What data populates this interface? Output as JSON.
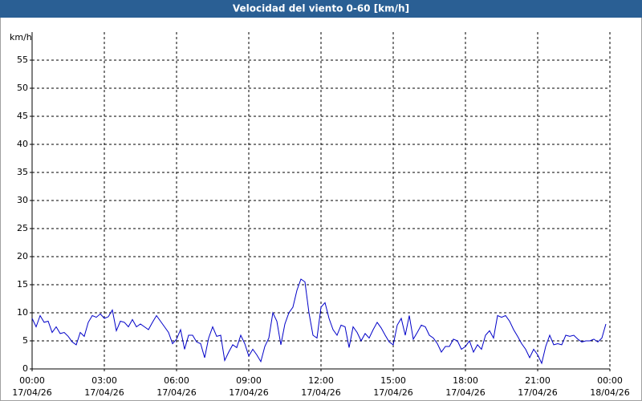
{
  "chart_data": {
    "type": "line",
    "title": "Velocidad del viento 0-60 [km/h]",
    "y_label": "km/h",
    "xlim": [
      0,
      1440
    ],
    "xticks": [
      {
        "value": 0,
        "label": "00:00"
      },
      {
        "value": 180,
        "label": "03:00"
      },
      {
        "value": 360,
        "label": "06:00"
      },
      {
        "value": 540,
        "label": "09:00"
      },
      {
        "value": 720,
        "label": "12:00"
      },
      {
        "value": 900,
        "label": "15:00"
      },
      {
        "value": 1080,
        "label": "18:00"
      },
      {
        "value": 1260,
        "label": "21:00"
      },
      {
        "value": 1440,
        "label": "00:00"
      }
    ],
    "xtick_dates": [
      "17/04/26",
      "17/04/26",
      "17/04/26",
      "17/04/26",
      "17/04/26",
      "17/04/26",
      "17/04/26",
      "17/04/26",
      "18/04/26"
    ],
    "ylim": [
      0,
      60
    ],
    "yticks": [
      0,
      5,
      10,
      15,
      20,
      25,
      30,
      35,
      40,
      45,
      50,
      55
    ],
    "grid": true,
    "series": [
      {
        "color": "#0000c8",
        "x": [
          0,
          10,
          20,
          30,
          40,
          50,
          60,
          70,
          80,
          90,
          100,
          110,
          120,
          130,
          140,
          150,
          160,
          170,
          180,
          190,
          200,
          210,
          220,
          230,
          240,
          250,
          260,
          270,
          280,
          290,
          300,
          310,
          320,
          330,
          340,
          350,
          360,
          370,
          380,
          390,
          400,
          410,
          420,
          430,
          440,
          450,
          460,
          470,
          480,
          490,
          500,
          510,
          520,
          530,
          540,
          550,
          560,
          570,
          580,
          590,
          600,
          610,
          620,
          630,
          640,
          650,
          660,
          670,
          680,
          690,
          700,
          710,
          720,
          730,
          740,
          750,
          760,
          770,
          780,
          790,
          800,
          810,
          820,
          830,
          840,
          850,
          860,
          870,
          880,
          890,
          900,
          910,
          920,
          930,
          940,
          950,
          960,
          970,
          980,
          990,
          1000,
          1010,
          1020,
          1030,
          1040,
          1050,
          1060,
          1070,
          1080,
          1090,
          1100,
          1110,
          1120,
          1130,
          1140,
          1150,
          1160,
          1170,
          1180,
          1190,
          1200,
          1210,
          1220,
          1230,
          1240,
          1250,
          1260,
          1270,
          1280,
          1290,
          1300,
          1310,
          1320,
          1330,
          1340,
          1350,
          1360,
          1370,
          1380,
          1390,
          1400,
          1410,
          1420,
          1430
        ],
        "values": [
          9,
          7.5,
          9.5,
          8.3,
          8.5,
          6.5,
          7.5,
          6.3,
          6.5,
          5.8,
          4.8,
          4.3,
          6.5,
          5.8,
          8.3,
          9.5,
          9.2,
          9.8,
          9,
          9.3,
          10.5,
          6.8,
          8.5,
          8.3,
          7.5,
          8.8,
          7.5,
          8,
          7.5,
          7,
          8.3,
          9.5,
          8.5,
          7.5,
          6.5,
          4.5,
          5.3,
          7,
          3.5,
          6,
          6,
          4.8,
          4.5,
          2,
          5.5,
          7.5,
          5.8,
          6,
          1.5,
          3,
          4.3,
          3.8,
          6,
          4.5,
          2.3,
          3.5,
          2.5,
          1.3,
          4,
          5.5,
          10,
          8.5,
          4.3,
          8,
          10,
          11,
          14,
          16,
          15.5,
          10,
          6,
          5.5,
          11,
          11.8,
          9,
          7,
          6,
          7.8,
          7.5,
          3.8,
          7.5,
          6.5,
          5,
          6.3,
          5.5,
          7,
          8.3,
          7.3,
          6,
          4.8,
          4.3,
          7.8,
          9,
          6,
          9.5,
          5.3,
          6.5,
          7.8,
          7.5,
          6,
          5.5,
          4.5,
          3,
          4,
          4,
          5.3,
          5,
          3.5,
          4,
          5,
          3,
          4.3,
          3.5,
          6,
          6.8,
          5.5,
          9.5,
          9.2,
          9.5,
          8.5,
          7,
          5.8,
          4.5,
          3.5,
          2,
          3.5,
          2.5,
          1,
          4,
          6,
          4.3,
          4.5,
          4.3,
          6,
          5.8,
          6,
          5.3,
          4.8,
          5,
          5,
          5.3,
          4.8,
          5.5,
          8
        ]
      }
    ]
  }
}
